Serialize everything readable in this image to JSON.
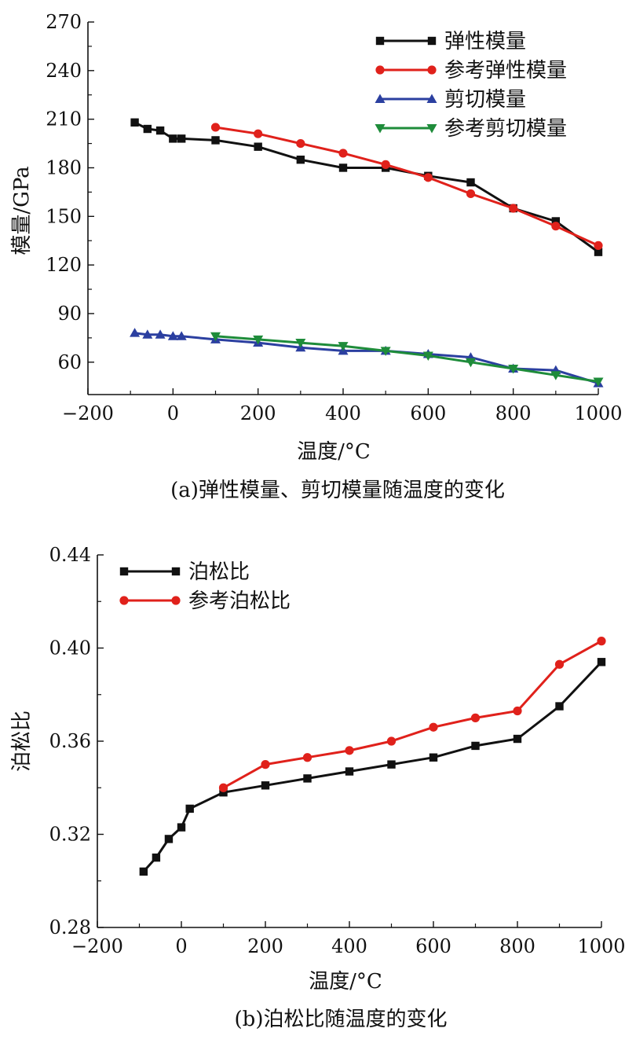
{
  "chart_data": [
    {
      "type": "line",
      "caption": "(a)弹性模量、剪切模量随温度的变化",
      "xlabel": "温度/°C",
      "ylabel": "模量/GPa",
      "xlim": [
        -200,
        1000
      ],
      "ylim": [
        40,
        270
      ],
      "xticks": [
        -200,
        0,
        200,
        400,
        600,
        800,
        1000
      ],
      "xtick_labels": [
        "−200",
        "0",
        "200",
        "400",
        "600",
        "800",
        "1000"
      ],
      "yticks": [
        60,
        90,
        120,
        150,
        180,
        210,
        240,
        270
      ],
      "ytick_labels": [
        "60",
        "90",
        "120",
        "150",
        "180",
        "210",
        "240",
        "270"
      ],
      "legend_position": "top-right",
      "series": [
        {
          "name": "弹性模量",
          "color": "#111111",
          "marker": "square",
          "x": [
            -90,
            -60,
            -30,
            0,
            20,
            100,
            200,
            300,
            400,
            500,
            600,
            700,
            800,
            900,
            1000
          ],
          "y": [
            208,
            204,
            203,
            198,
            198,
            197,
            193,
            185,
            180,
            180,
            175,
            171,
            155,
            147,
            128
          ]
        },
        {
          "name": "参考弹性模量",
          "color": "#e0211b",
          "marker": "circle",
          "x": [
            100,
            200,
            300,
            400,
            500,
            600,
            700,
            800,
            900,
            1000
          ],
          "y": [
            205,
            201,
            195,
            189,
            182,
            174,
            164,
            155,
            144,
            132
          ]
        },
        {
          "name": "剪切模量",
          "color": "#2b3fa0",
          "marker": "triangle-up",
          "x": [
            -90,
            -60,
            -30,
            0,
            20,
            100,
            200,
            300,
            400,
            500,
            600,
            700,
            800,
            900,
            1000
          ],
          "y": [
            78,
            77,
            77,
            76,
            76,
            74,
            72,
            69,
            67,
            67,
            65,
            63,
            56,
            55,
            47
          ]
        },
        {
          "name": "参考剪切模量",
          "color": "#1e8c3a",
          "marker": "triangle-down",
          "x": [
            100,
            200,
            300,
            400,
            500,
            600,
            700,
            800,
            900,
            1000
          ],
          "y": [
            76,
            74,
            72,
            70,
            67,
            64,
            60,
            56,
            52,
            48
          ]
        }
      ]
    },
    {
      "type": "line",
      "caption": "(b)泊松比随温度的变化",
      "xlabel": "温度/°C",
      "ylabel": "泊松比",
      "xlim": [
        -200,
        1000
      ],
      "ylim": [
        0.28,
        0.44
      ],
      "xticks": [
        -200,
        0,
        200,
        400,
        600,
        800,
        1000
      ],
      "xtick_labels": [
        "−200",
        "0",
        "200",
        "400",
        "600",
        "800",
        "1000"
      ],
      "yticks": [
        0.28,
        0.32,
        0.36,
        0.4,
        0.44
      ],
      "ytick_labels": [
        "0.28",
        "0.32",
        "0.36",
        "0.40",
        "0.44"
      ],
      "legend_position": "top-left",
      "series": [
        {
          "name": "泊松比",
          "color": "#111111",
          "marker": "square",
          "x": [
            -90,
            -60,
            -30,
            0,
            20,
            100,
            200,
            300,
            400,
            500,
            600,
            700,
            800,
            900,
            1000
          ],
          "y": [
            0.304,
            0.31,
            0.318,
            0.323,
            0.331,
            0.338,
            0.341,
            0.344,
            0.347,
            0.35,
            0.353,
            0.358,
            0.361,
            0.375,
            0.394
          ]
        },
        {
          "name": "参考泊松比",
          "color": "#e0211b",
          "marker": "circle",
          "x": [
            100,
            200,
            300,
            400,
            500,
            600,
            700,
            800,
            900,
            1000
          ],
          "y": [
            0.34,
            0.35,
            0.353,
            0.356,
            0.36,
            0.366,
            0.37,
            0.373,
            0.393,
            0.403
          ]
        }
      ]
    }
  ]
}
